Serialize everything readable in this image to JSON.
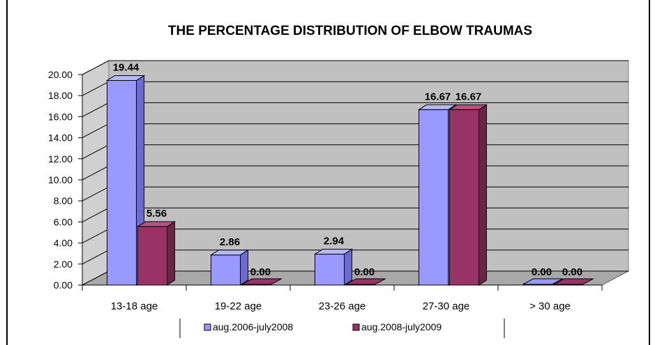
{
  "colors": {
    "series1_front": "#9999ff",
    "series1_side": "#6b6bd4",
    "series1_top": "#b8b8ff",
    "series2_front": "#993366",
    "series2_side": "#6b2447",
    "series2_top": "#b5557f",
    "wall": "#c0c0c0",
    "floor": "#a8a8a8"
  },
  "chart_data": {
    "type": "bar",
    "title": "THE PERCENTAGE DISTRIBUTION OF ELBOW TRAUMAS",
    "categories": [
      "13-18 age",
      "19-22 age",
      "23-26 age",
      "27-30 age",
      "> 30 age"
    ],
    "series": [
      {
        "name": "aug.2006-july2008",
        "values": [
          19.44,
          2.86,
          2.94,
          16.67,
          0.0
        ]
      },
      {
        "name": "aug.2008-july2009",
        "values": [
          5.56,
          0.0,
          0.0,
          16.67,
          0.0
        ]
      }
    ],
    "data_labels": [
      [
        "19.44",
        "2.86",
        "2.94",
        "16.67",
        "0.00"
      ],
      [
        "5.56",
        "0.00",
        "0.00",
        "16.67",
        "0.00"
      ]
    ],
    "y_ticks": [
      "0.00",
      "2.00",
      "4.00",
      "6.00",
      "8.00",
      "10.00",
      "12.00",
      "14.00",
      "16.00",
      "18.00",
      "20.00"
    ],
    "ylim": [
      0,
      20
    ],
    "grid": true,
    "style": "3d-clustered-column",
    "legend_position": "bottom"
  }
}
